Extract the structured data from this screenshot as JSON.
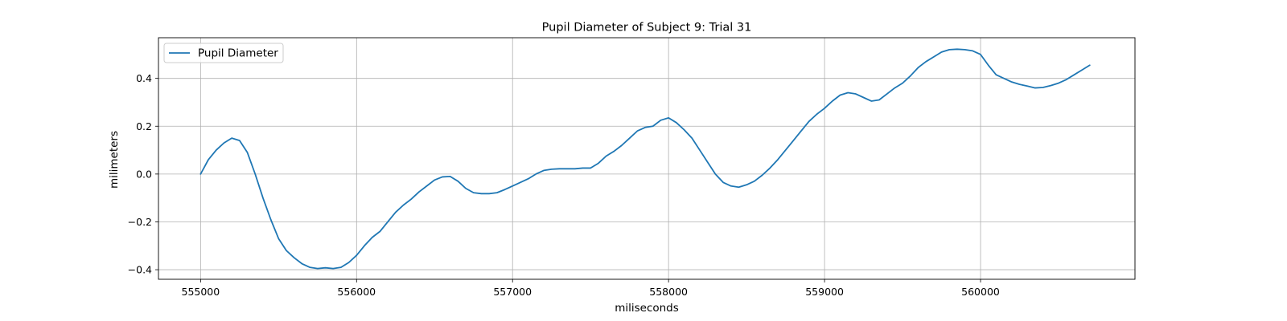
{
  "chart_data": {
    "type": "line",
    "title": "Pupil Diameter of Subject 9: Trial 31",
    "xlabel": "miliseconds",
    "ylabel": "milimeters",
    "xlim": [
      554730,
      560990
    ],
    "ylim": [
      -0.44,
      0.57
    ],
    "xticks": [
      555000,
      556000,
      557000,
      558000,
      559000,
      560000
    ],
    "yticks": [
      -0.4,
      -0.2,
      0.0,
      0.2,
      0.4
    ],
    "xtick_labels": [
      "555000",
      "556000",
      "557000",
      "558000",
      "559000",
      "560000"
    ],
    "ytick_labels": [
      "−0.4",
      "−0.2",
      "0.0",
      "0.2",
      "0.4"
    ],
    "grid": true,
    "legend_position": "upper-left",
    "series": [
      {
        "name": "Pupil Diameter",
        "color": "#1f77b4",
        "x": [
          555000,
          555050,
          555100,
          555150,
          555200,
          555250,
          555300,
          555350,
          555400,
          555450,
          555500,
          555550,
          555600,
          555650,
          555700,
          555750,
          555800,
          555850,
          555900,
          555950,
          556000,
          556050,
          556100,
          556150,
          556200,
          556250,
          556300,
          556350,
          556400,
          556450,
          556500,
          556550,
          556600,
          556650,
          556700,
          556750,
          556800,
          556850,
          556900,
          556950,
          557000,
          557050,
          557100,
          557150,
          557200,
          557250,
          557300,
          557350,
          557400,
          557450,
          557500,
          557550,
          557600,
          557650,
          557700,
          557750,
          557800,
          557850,
          557900,
          557950,
          558000,
          558050,
          558100,
          558150,
          558200,
          558250,
          558300,
          558350,
          558400,
          558450,
          558500,
          558550,
          558600,
          558650,
          558700,
          558750,
          558800,
          558850,
          558900,
          558950,
          559000,
          559050,
          559100,
          559150,
          559200,
          559250,
          559300,
          559350,
          559400,
          559450,
          559500,
          559550,
          559600,
          559650,
          559700,
          559750,
          559800,
          559850,
          559900,
          559950,
          560000,
          560050,
          560100,
          560150,
          560200,
          560250,
          560300,
          560350,
          560400,
          560450,
          560500,
          560550,
          560600,
          560650,
          560700
        ],
        "y": [
          0.0,
          0.06,
          0.1,
          0.13,
          0.15,
          0.14,
          0.09,
          0.0,
          -0.1,
          -0.19,
          -0.27,
          -0.32,
          -0.35,
          -0.375,
          -0.39,
          -0.395,
          -0.392,
          -0.395,
          -0.39,
          -0.37,
          -0.34,
          -0.3,
          -0.265,
          -0.24,
          -0.2,
          -0.16,
          -0.13,
          -0.105,
          -0.075,
          -0.05,
          -0.025,
          -0.012,
          -0.01,
          -0.03,
          -0.06,
          -0.078,
          -0.082,
          -0.082,
          -0.078,
          -0.065,
          -0.05,
          -0.035,
          -0.02,
          0.0,
          0.015,
          0.02,
          0.022,
          0.022,
          0.022,
          0.025,
          0.025,
          0.045,
          0.075,
          0.095,
          0.12,
          0.15,
          0.18,
          0.195,
          0.2,
          0.225,
          0.235,
          0.215,
          0.185,
          0.15,
          0.1,
          0.05,
          0.0,
          -0.035,
          -0.05,
          -0.055,
          -0.045,
          -0.03,
          -0.005,
          0.025,
          0.06,
          0.1,
          0.14,
          0.18,
          0.22,
          0.25,
          0.275,
          0.305,
          0.33,
          0.34,
          0.335,
          0.32,
          0.305,
          0.31,
          0.335,
          0.36,
          0.38,
          0.41,
          0.445,
          0.47,
          0.49,
          0.51,
          0.52,
          0.522,
          0.52,
          0.515,
          0.5,
          0.455,
          0.415,
          0.4,
          0.385,
          0.375,
          0.368,
          0.36,
          0.362,
          0.37,
          0.38,
          0.395,
          0.415,
          0.435,
          0.455
        ]
      }
    ]
  }
}
